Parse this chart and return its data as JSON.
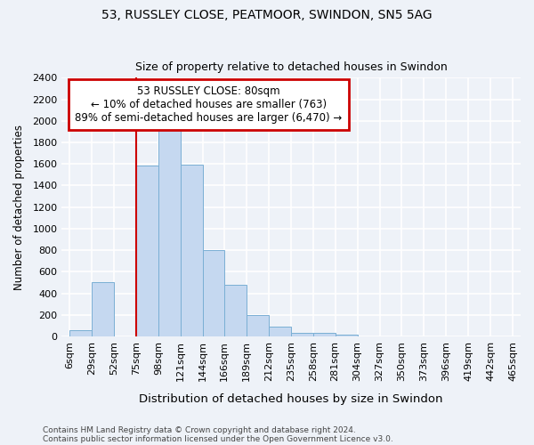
{
  "title1": "53, RUSSLEY CLOSE, PEATMOOR, SWINDON, SN5 5AG",
  "title2": "Size of property relative to detached houses in Swindon",
  "xlabel": "Distribution of detached houses by size in Swindon",
  "ylabel": "Number of detached properties",
  "footer1": "Contains HM Land Registry data © Crown copyright and database right 2024.",
  "footer2": "Contains public sector information licensed under the Open Government Licence v3.0.",
  "annotation_title": "53 RUSSLEY CLOSE: 80sqm",
  "annotation_line1": "← 10% of detached houses are smaller (763)",
  "annotation_line2": "89% of semi-detached houses are larger (6,470) →",
  "bar_color": "#c5d8f0",
  "bar_edge_color": "#7aafd4",
  "vline_color": "#cc0000",
  "vline_x": 75,
  "annotation_box_color": "#cc0000",
  "bin_edges": [
    6,
    29,
    52,
    75,
    98,
    121,
    144,
    166,
    189,
    212,
    235,
    258,
    281,
    304,
    327,
    350,
    373,
    396,
    419,
    442,
    465
  ],
  "bar_heights": [
    55,
    505,
    0,
    1585,
    1950,
    1590,
    800,
    480,
    195,
    90,
    35,
    30,
    20,
    5,
    5,
    5,
    0,
    0,
    0,
    0
  ],
  "ylim": [
    0,
    2400
  ],
  "yticks": [
    0,
    200,
    400,
    600,
    800,
    1000,
    1200,
    1400,
    1600,
    1800,
    2000,
    2200,
    2400
  ],
  "background_color": "#eef2f8",
  "grid_color": "#ffffff",
  "fig_width": 6.0,
  "fig_height": 5.0
}
